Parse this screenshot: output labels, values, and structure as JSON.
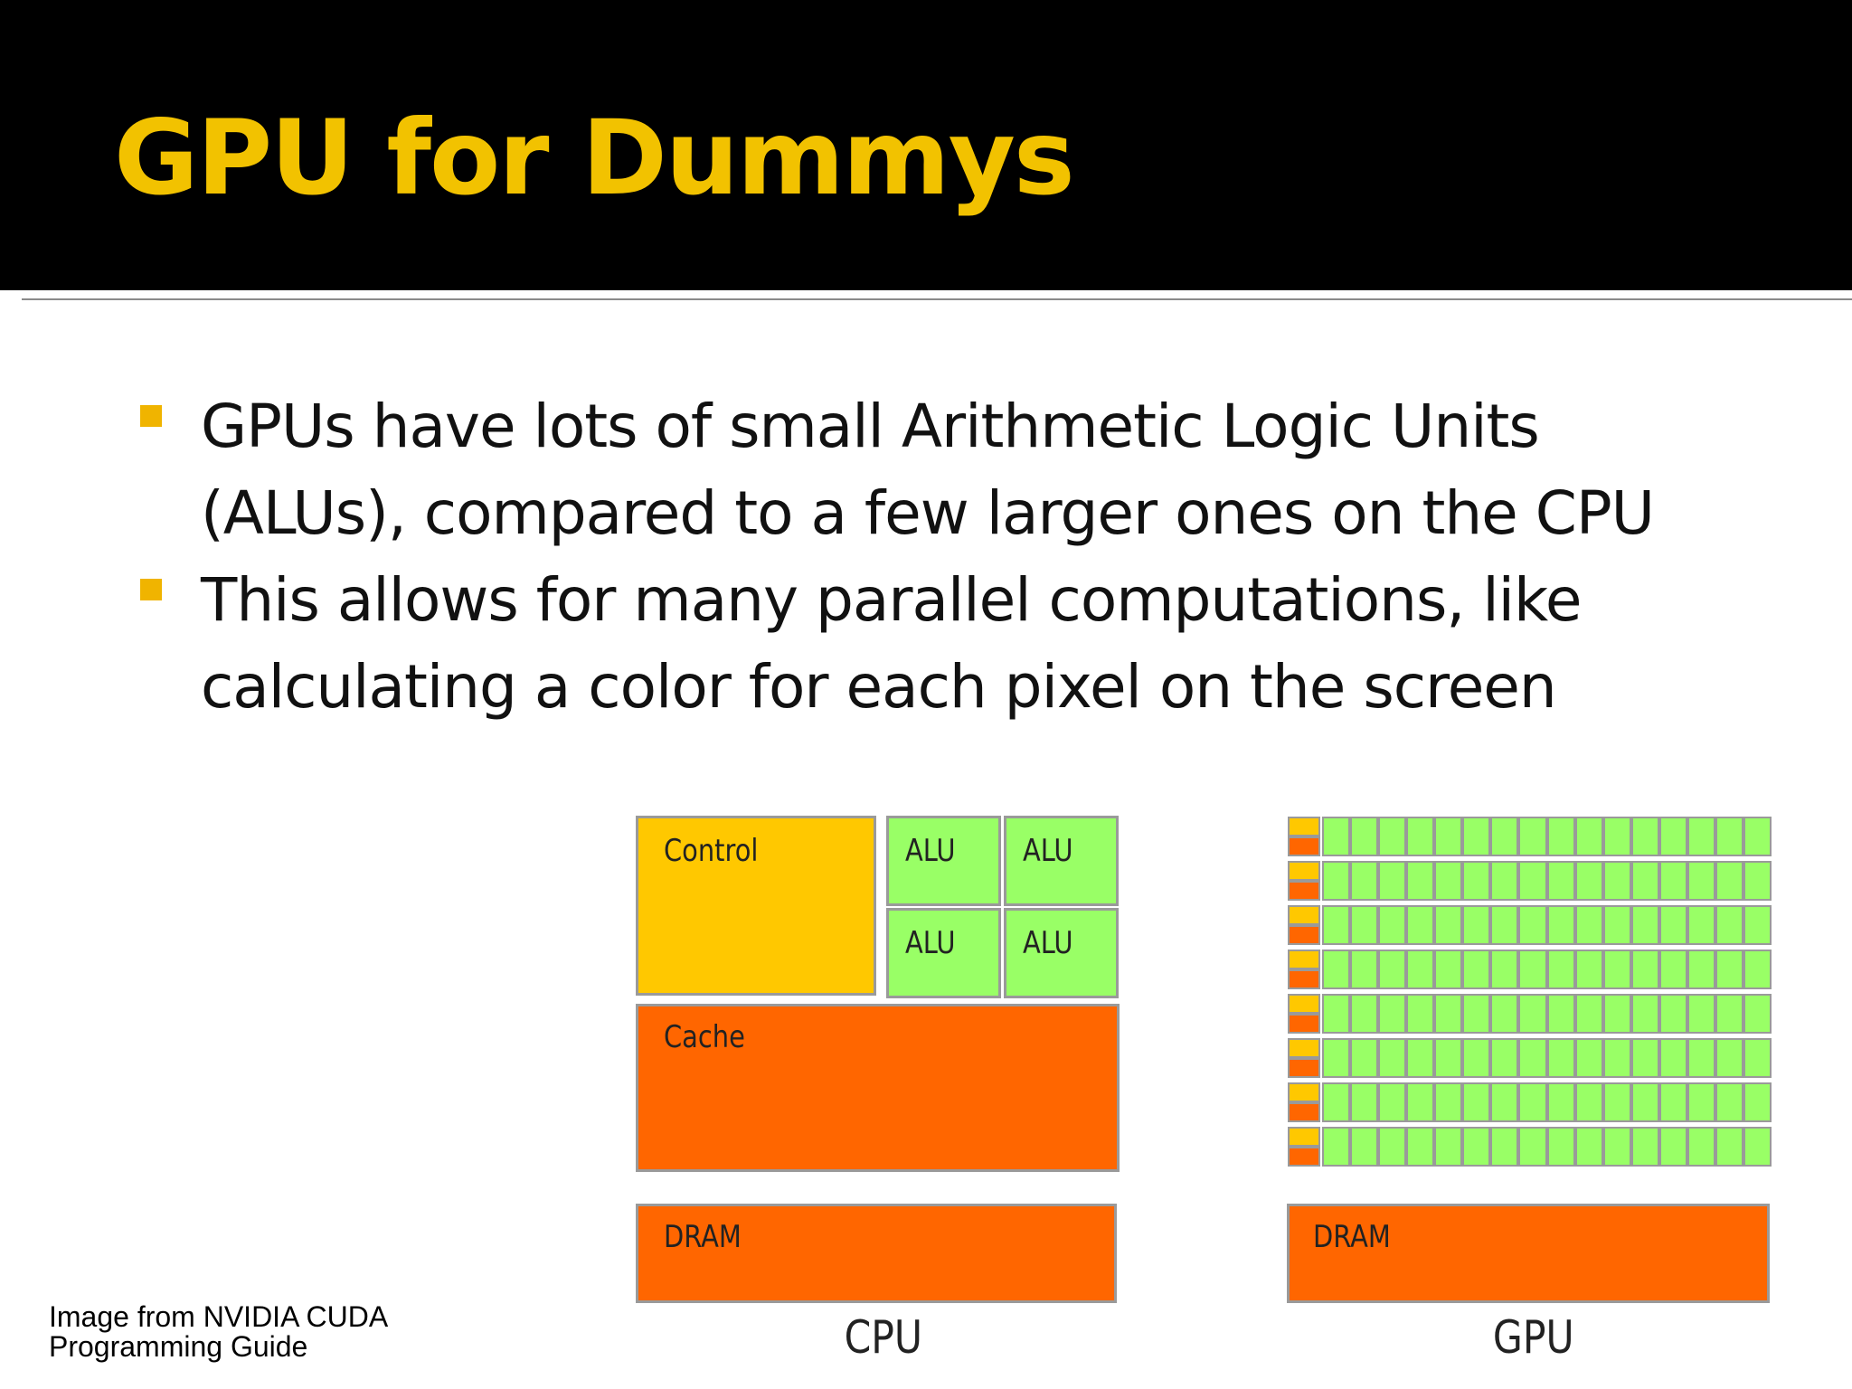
{
  "slide": {
    "title": "GPU for Dummys",
    "bullets": [
      {
        "lines": [
          "GPUs have lots of small Arithmetic Logic Units",
          "(ALUs), compared to a few larger ones on the CPU"
        ]
      },
      {
        "lines": [
          "This allows for many parallel computations, like",
          "calculating a color for each pixel on the screen"
        ]
      }
    ],
    "colors": {
      "title": "#f2c200",
      "bullet": "#f0b400",
      "control": "#ffc800",
      "alu": "#99ff66",
      "memory": "#ff6600"
    }
  },
  "diagram": {
    "cpu": {
      "control_label": "Control",
      "alu_labels": [
        "ALU",
        "ALU",
        "ALU",
        "ALU"
      ],
      "cache_label": "Cache",
      "dram_label": "DRAM",
      "caption": "CPU"
    },
    "gpu": {
      "rows": 8,
      "cores_per_row": 16,
      "dram_label": "DRAM",
      "caption": "GPU"
    }
  },
  "credit": {
    "line1": "Image from NVIDIA CUDA",
    "line2": "Programming Guide"
  }
}
